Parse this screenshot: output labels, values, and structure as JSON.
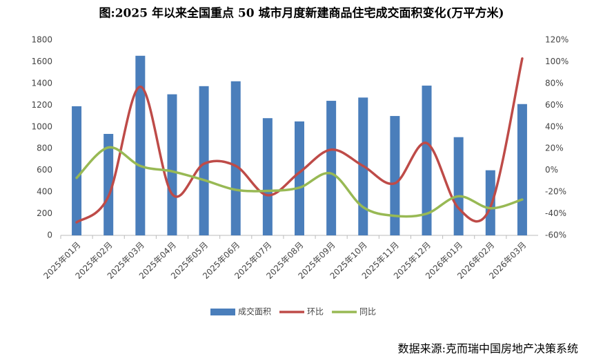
{
  "chart_data": {
    "type": "bar",
    "title": "图:2025 年以来全国重点 50 城市月度新建商品住宅成交面积变化(万平方米)",
    "source": "数据来源:克而瑞中国房地产决策系统",
    "categories": [
      "2025年01月",
      "2025年02月",
      "2025年03月",
      "2025年04月",
      "2025年05月",
      "2025年06月",
      "2025年07月",
      "2025年08月",
      "2025年09月",
      "2025年10月",
      "2025年11月",
      "2025年12月",
      "2026年01月",
      "2026年02月",
      "2026年03月"
    ],
    "series": [
      {
        "name": "成交面积",
        "type": "bar",
        "color": "#4a7ebb",
        "values": [
          1190,
          935,
          1655,
          1300,
          1375,
          1420,
          1080,
          1050,
          1240,
          1270,
          1100,
          1380,
          905,
          600,
          1210
        ]
      },
      {
        "name": "环比",
        "type": "line",
        "axis": "y2",
        "color": "#be4b48",
        "values": [
          -48,
          -24,
          77,
          -22,
          6,
          4,
          -23,
          -2,
          19,
          4,
          -12,
          25,
          -35,
          -34,
          103
        ]
      },
      {
        "name": "同比",
        "type": "line",
        "axis": "y2",
        "color": "#98b954",
        "values": [
          -7,
          21,
          4,
          -1,
          -9,
          -18,
          -19,
          -16,
          -3,
          -34,
          -42,
          -40,
          -24,
          -35,
          -27
        ]
      }
    ],
    "ylim": [
      0,
      1800
    ],
    "yticks": [
      0,
      200,
      400,
      600,
      800,
      1000,
      1200,
      1400,
      1600,
      1800
    ],
    "y2lim": [
      -60,
      120
    ],
    "y2ticks": [
      {
        "value": -60,
        "label": "-60%"
      },
      {
        "value": -40,
        "label": "-40%"
      },
      {
        "value": -20,
        "label": "-20%"
      },
      {
        "value": 0,
        "label": "0%"
      },
      {
        "value": 20,
        "label": "20%"
      },
      {
        "value": 40,
        "label": "40%"
      },
      {
        "value": 60,
        "label": "60%"
      },
      {
        "value": 80,
        "label": "80%"
      },
      {
        "value": 100,
        "label": "100%"
      },
      {
        "value": 120,
        "label": "120%"
      }
    ],
    "grid": false,
    "legend": "bottom"
  }
}
